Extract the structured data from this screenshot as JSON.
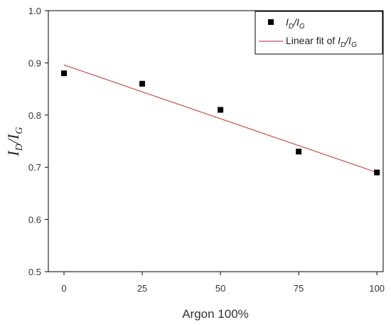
{
  "chart_data": {
    "type": "scatter",
    "title": "",
    "xlabel": "Argon 100%",
    "ylabel_main": "I",
    "ylabel_sub1": "D",
    "ylabel_slash": "/I",
    "ylabel_sub2": "G",
    "xlim": [
      -5,
      102
    ],
    "ylim": [
      0.5,
      1.0
    ],
    "xticks": [
      0,
      25,
      50,
      75,
      100
    ],
    "xtick_labels": [
      "0",
      "25",
      "50",
      "75",
      "100"
    ],
    "yticks": [
      0.5,
      0.6,
      0.7,
      0.8,
      0.9,
      1.0
    ],
    "ytick_labels": [
      "0.5",
      "0.6",
      "0.7",
      "0.8",
      "0.9",
      "1.0"
    ],
    "grid": false,
    "legend_position": "top-right",
    "series": [
      {
        "name": "I_D/I_G",
        "marker": "square",
        "color": "#000000",
        "x": [
          0,
          25,
          50,
          75,
          100
        ],
        "y": [
          0.88,
          0.86,
          0.81,
          0.73,
          0.69
        ]
      }
    ],
    "fit": {
      "name": "Linear fit of I_D/I_G",
      "color": "#c0504d",
      "x": [
        0,
        100
      ],
      "y": [
        0.896,
        0.69
      ]
    },
    "legend": {
      "series_main": "I",
      "series_sub1": "D",
      "series_slash": "/I",
      "series_sub2": "G",
      "fit_prefix": "Linear fit of ",
      "fit_main": "I",
      "fit_sub1": "D",
      "fit_slash": "/I",
      "fit_sub2": "G"
    }
  }
}
